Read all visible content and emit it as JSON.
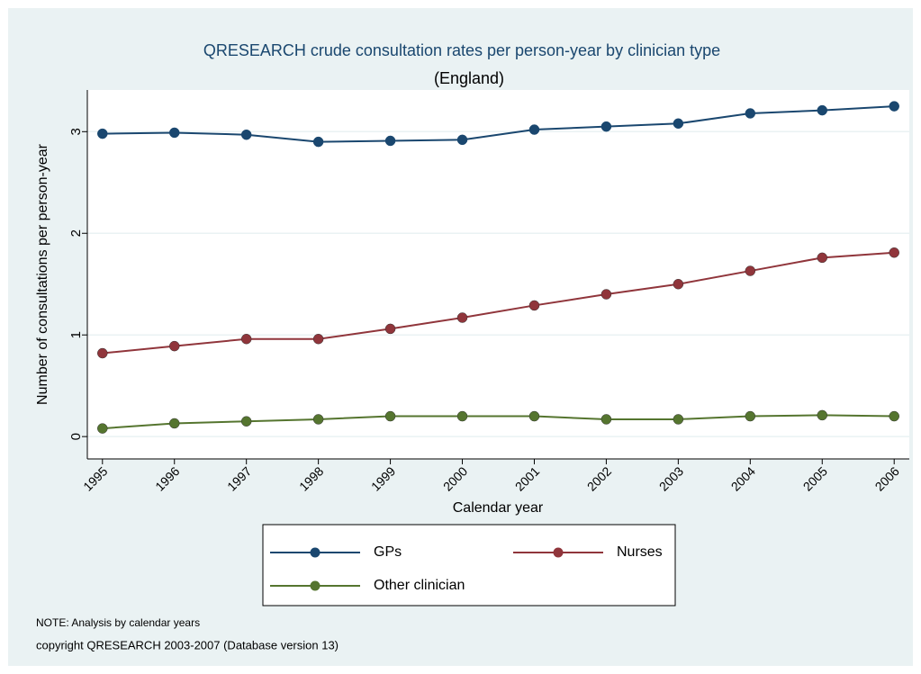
{
  "chart_data": {
    "type": "line",
    "title": "QRESEARCH crude consultation rates per person-year by clinician type",
    "subtitle": "(England)",
    "x_label": "Calendar year",
    "y_label": "Number of consultations per person-year",
    "x": [
      1995,
      1996,
      1997,
      1998,
      1999,
      2000,
      2001,
      2002,
      2003,
      2004,
      2005,
      2006
    ],
    "series": [
      {
        "name": "GPs",
        "color": "#1a476f",
        "values": [
          2.98,
          2.99,
          2.97,
          2.9,
          2.91,
          2.92,
          3.02,
          3.05,
          3.08,
          3.18,
          3.21,
          3.25
        ]
      },
      {
        "name": "Nurses",
        "color": "#90353b",
        "values": [
          0.82,
          0.89,
          0.96,
          0.96,
          1.06,
          1.17,
          1.29,
          1.4,
          1.5,
          1.63,
          1.76,
          1.81
        ]
      },
      {
        "name": "Other clinician",
        "color": "#55752f",
        "values": [
          0.08,
          0.13,
          0.15,
          0.17,
          0.2,
          0.2,
          0.2,
          0.17,
          0.17,
          0.2,
          0.21,
          0.2
        ]
      }
    ],
    "xlim": [
      1994.79,
      2006.21
    ],
    "xticks": [
      1995,
      1996,
      1997,
      1998,
      1999,
      2000,
      2001,
      2002,
      2003,
      2004,
      2005,
      2006
    ],
    "ylim": [
      -0.22,
      3.41
    ],
    "yticks": [
      0,
      1,
      2,
      3
    ],
    "grid": true,
    "legend_position": "bottom",
    "notes": [
      "NOTE: Analysis by calendar years",
      "copyright QRESEARCH 2003-2007 (Database version 13)"
    ]
  }
}
